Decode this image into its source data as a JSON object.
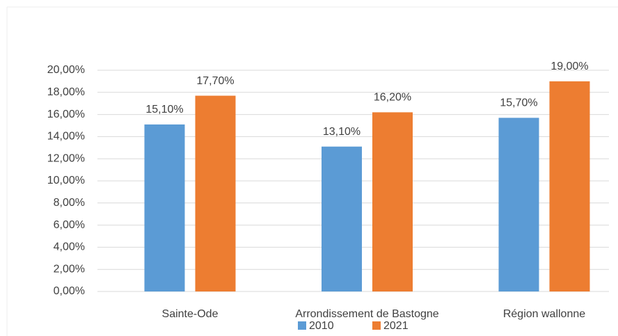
{
  "chart_data": {
    "type": "bar",
    "categories": [
      "Sainte-Ode",
      "Arrondissement de Bastogne",
      "Région wallonne"
    ],
    "series": [
      {
        "name": "2010",
        "color": "#5b9bd5",
        "values": [
          15.1,
          13.1,
          15.7
        ],
        "value_labels": [
          "15,10%",
          "13,10%",
          "15,70%"
        ]
      },
      {
        "name": "2021",
        "color": "#ed7d31",
        "values": [
          17.7,
          16.2,
          19.0
        ],
        "value_labels": [
          "17,70%",
          "16,20%",
          "19,00%"
        ]
      }
    ],
    "ylim": [
      0,
      20
    ],
    "yticks": [
      {
        "value": 0,
        "label": "0,00%"
      },
      {
        "value": 2,
        "label": "2,00%"
      },
      {
        "value": 4,
        "label": "4,00%"
      },
      {
        "value": 6,
        "label": "6,00%"
      },
      {
        "value": 8,
        "label": "8,00%"
      },
      {
        "value": 10,
        "label": "10,00%"
      },
      {
        "value": 12,
        "label": "12,00%"
      },
      {
        "value": 14,
        "label": "14,00%"
      },
      {
        "value": 16,
        "label": "16,00%"
      },
      {
        "value": 18,
        "label": "18,00%"
      },
      {
        "value": 20,
        "label": "20,00%"
      }
    ],
    "grid": true,
    "legend": "bottom"
  }
}
